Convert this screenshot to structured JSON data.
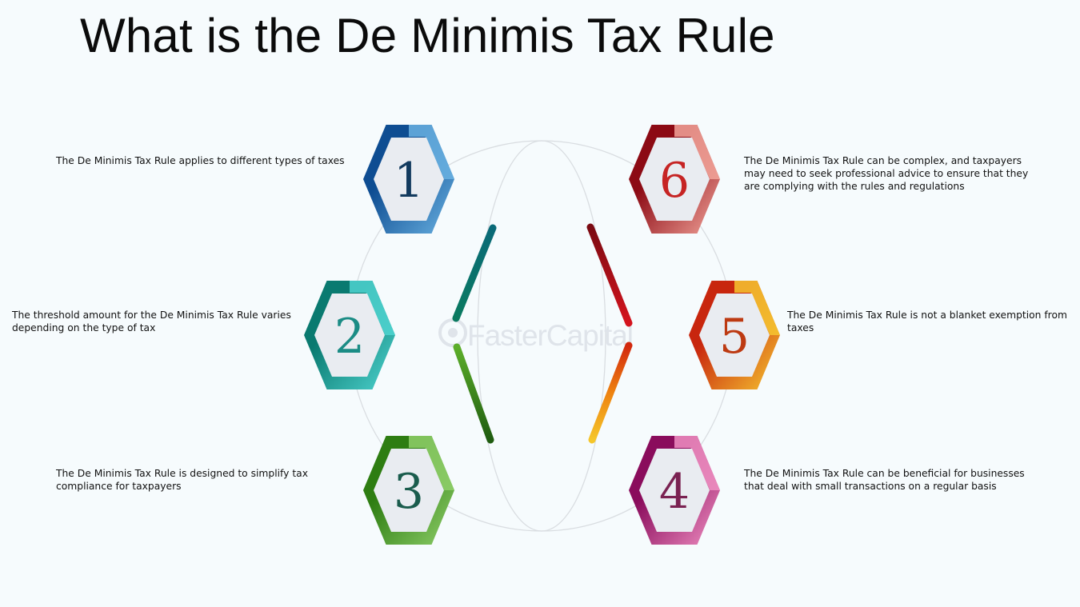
{
  "title": "What is the De Minimis Tax Rule",
  "watermark": "FasterCapital",
  "items": [
    {
      "number": "1",
      "text": "The De Minimis Tax Rule applies to different types of taxes",
      "color_dark": "#0e4d92",
      "color_light": "#6ab2e2",
      "text_color": "#123a5e"
    },
    {
      "number": "2",
      "text": "The threshold amount for the De Minimis Tax Rule varies depending on the type of tax",
      "color_dark": "#0a7a70",
      "color_light": "#4fd4d0",
      "text_color": "#1b8c85"
    },
    {
      "number": "3",
      "text": "The De Minimis Tax Rule is designed to simplify tax compliance for taxpayers",
      "color_dark": "#2e7d12",
      "color_light": "#8fcf6a",
      "text_color": "#1a5c4d"
    },
    {
      "number": "4",
      "text": "The De Minimis Tax Rule can be beneficial for businesses that deal with small transactions on a regular basis",
      "color_dark": "#8a0c5c",
      "color_light": "#ef8fc2",
      "text_color": "#7a2252"
    },
    {
      "number": "5",
      "text": "The De Minimis Tax Rule is not a blanket exemption from taxes",
      "color_dark": "#c8260e",
      "color_light": "#f6c630",
      "text_color": "#bd3a12"
    },
    {
      "number": "6",
      "text": "The De Minimis Tax Rule can be complex, and taxpayers may need to seek professional advice to ensure that they are complying with the rules and regulations",
      "color_dark": "#8c0a14",
      "color_light": "#f2a49a",
      "text_color": "#c62424"
    }
  ]
}
